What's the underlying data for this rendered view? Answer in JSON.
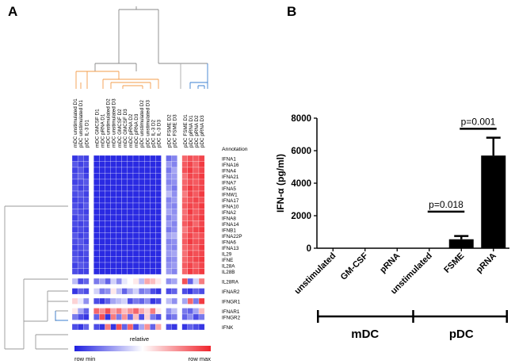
{
  "panel_a": {
    "label": "A",
    "annotation_header": "Annotation",
    "legend": {
      "title": "relative",
      "min_label": "row min",
      "max_label": "row max"
    }
  },
  "panel_b": {
    "label": "B",
    "group_labels": [
      "mDC",
      "pDC"
    ]
  },
  "chart_data": [
    {
      "type": "heatmap",
      "columns": [
        "mDC unstimulated D1",
        "pDC unstimulated D1",
        "pDC IL-3 D1",
        "mDC GMCSF D1",
        "mDC pRNA D1",
        "mDC unstimulated D2",
        "mDC unstimulated D3",
        "mDC GMCSF D2",
        "mDC GMCSF D3",
        "mDC pRNA D2",
        "mDC pRNA D3",
        "pDC unstimulated D2",
        "pDC unstimulated D3",
        "pDC IL-3 D2",
        "pDC IL-3 D3",
        "pDC FSME D2",
        "pDC FSME D3",
        "pDC FSME D1",
        "pDC pRNA D1",
        "pDC pRNA D2",
        "pDC pRNA D3"
      ],
      "column_groups": [
        3,
        12,
        2,
        4
      ],
      "row_groups": [
        {
          "rows": [
            "IFNA1",
            "IFNA16",
            "IFNA4",
            "IFNA21",
            "IFNA7",
            "IFNA5",
            "IFNW1",
            "IFNA17",
            "IFNA10",
            "IFNA2",
            "IFNA8",
            "IFNA14",
            "IFNB1",
            "IFNA22P",
            "IFNA6",
            "IFNA13",
            "IL29",
            "IFNE",
            "IL28A",
            "IL28B"
          ]
        },
        {
          "rows": [
            "IL28RA"
          ]
        },
        {
          "rows": [
            "IFNAR2"
          ]
        },
        {
          "rows": [
            "IFNGR1"
          ]
        },
        {
          "rows": [
            "IFNAR1",
            "IFNGR2"
          ]
        },
        {
          "rows": [
            "IFNK"
          ]
        }
      ],
      "scale": {
        "min": -1,
        "max": 1
      },
      "values": [
        [
          -0.9,
          -0.8,
          -0.85,
          -0.95,
          -0.95,
          -0.95,
          -0.95,
          -0.95,
          -0.95,
          -0.95,
          -0.95,
          -0.95,
          -0.95,
          -0.95,
          -0.95,
          -0.65,
          -0.55,
          0.7,
          0.8,
          0.75,
          0.85
        ],
        [
          -0.75,
          -0.85,
          -0.8,
          -0.95,
          -0.95,
          -0.95,
          -0.95,
          -0.95,
          -0.95,
          -0.95,
          -0.95,
          -0.95,
          -0.95,
          -0.95,
          -0.95,
          -0.45,
          -0.55,
          0.75,
          0.85,
          0.7,
          0.9
        ],
        [
          -0.85,
          -0.75,
          -0.9,
          -0.95,
          -0.95,
          -0.95,
          -0.95,
          -0.95,
          -0.95,
          -0.95,
          -0.95,
          -0.95,
          -0.95,
          -0.95,
          -0.95,
          -0.6,
          -0.4,
          0.8,
          0.9,
          0.75,
          0.85
        ],
        [
          -0.8,
          -0.7,
          -0.85,
          -0.95,
          -0.95,
          -0.95,
          -0.95,
          -0.95,
          -0.95,
          -0.95,
          -0.95,
          -0.95,
          -0.95,
          -0.95,
          -0.95,
          -0.5,
          -0.45,
          0.65,
          0.85,
          0.8,
          0.9
        ],
        [
          -0.85,
          -0.8,
          -0.75,
          -0.95,
          -0.95,
          -0.95,
          -0.95,
          -0.95,
          -0.95,
          -0.95,
          -0.95,
          -0.95,
          -0.95,
          -0.95,
          -0.95,
          -0.55,
          -0.5,
          0.7,
          0.8,
          0.75,
          0.85
        ],
        [
          -0.75,
          -0.85,
          -0.8,
          -0.95,
          -0.95,
          -0.95,
          -0.95,
          -0.95,
          -0.95,
          -0.95,
          -0.95,
          -0.95,
          -0.95,
          -0.95,
          -0.95,
          -0.45,
          -0.6,
          0.75,
          0.9,
          0.8,
          0.85
        ],
        [
          -0.8,
          -0.75,
          -0.85,
          -0.95,
          -0.95,
          -0.95,
          -0.95,
          -0.95,
          -0.95,
          -0.95,
          -0.95,
          -0.95,
          -0.95,
          -0.95,
          -0.95,
          -0.3,
          -0.5,
          0.6,
          0.85,
          0.75,
          0.9
        ],
        [
          -0.85,
          -0.8,
          -0.8,
          -0.95,
          -0.95,
          -0.95,
          -0.95,
          -0.95,
          -0.95,
          -0.95,
          -0.95,
          -0.95,
          -0.95,
          -0.95,
          -0.95,
          -0.55,
          -0.45,
          0.7,
          0.8,
          0.85,
          0.8
        ],
        [
          -0.8,
          -0.85,
          -0.75,
          -0.95,
          -0.95,
          -0.95,
          -0.95,
          -0.95,
          -0.95,
          -0.95,
          -0.95,
          -0.95,
          -0.95,
          -0.95,
          -0.95,
          -0.5,
          -0.55,
          0.75,
          0.85,
          0.8,
          0.9
        ],
        [
          -0.75,
          -0.8,
          -0.85,
          -0.95,
          -0.95,
          -0.95,
          -0.95,
          -0.95,
          -0.95,
          -0.95,
          -0.95,
          -0.95,
          -0.95,
          -0.95,
          -0.95,
          -0.4,
          -0.5,
          0.65,
          0.9,
          0.75,
          0.85
        ],
        [
          -0.85,
          -0.75,
          -0.8,
          -0.95,
          -0.95,
          -0.95,
          -0.95,
          -0.95,
          -0.95,
          -0.95,
          -0.95,
          -0.95,
          -0.95,
          -0.95,
          -0.95,
          -0.55,
          -0.45,
          0.7,
          0.8,
          0.8,
          0.9
        ],
        [
          -0.8,
          -0.85,
          -0.8,
          -0.95,
          -0.95,
          -0.95,
          -0.95,
          -0.95,
          -0.95,
          -0.95,
          -0.95,
          -0.95,
          -0.95,
          -0.95,
          -0.95,
          -0.45,
          -0.55,
          0.75,
          0.85,
          0.7,
          0.85
        ],
        [
          -0.85,
          -0.8,
          -0.85,
          -0.95,
          -0.95,
          -0.95,
          -0.95,
          -0.95,
          -0.95,
          -0.95,
          -0.95,
          -0.95,
          -0.95,
          -0.95,
          -0.95,
          -0.6,
          -0.5,
          0.6,
          0.8,
          0.85,
          0.9
        ],
        [
          -0.75,
          -0.85,
          -0.8,
          -0.95,
          -0.95,
          -0.95,
          -0.95,
          -0.95,
          -0.95,
          -0.95,
          -0.95,
          -0.95,
          -0.95,
          -0.95,
          -0.95,
          -0.4,
          -0.35,
          0.7,
          0.85,
          0.75,
          0.8
        ],
        [
          -0.8,
          -0.75,
          -0.85,
          -0.95,
          -0.95,
          -0.95,
          -0.95,
          -0.95,
          -0.95,
          -0.95,
          -0.95,
          -0.95,
          -0.95,
          -0.95,
          -0.95,
          -0.55,
          -0.5,
          0.75,
          0.9,
          0.8,
          0.85
        ],
        [
          -0.85,
          -0.8,
          -0.75,
          -0.95,
          -0.95,
          -0.95,
          -0.95,
          -0.95,
          -0.95,
          -0.95,
          -0.95,
          -0.95,
          -0.95,
          -0.95,
          -0.95,
          -0.5,
          -0.55,
          0.7,
          0.8,
          0.75,
          0.9
        ],
        [
          -0.8,
          -0.85,
          -0.8,
          -0.95,
          -0.95,
          -0.95,
          -0.95,
          -0.95,
          -0.95,
          -0.95,
          -0.95,
          -0.95,
          -0.95,
          -0.95,
          -0.95,
          -0.45,
          -0.4,
          0.65,
          0.85,
          0.8,
          0.85
        ],
        [
          -0.75,
          -0.8,
          -0.85,
          -0.95,
          -0.95,
          -0.95,
          -0.95,
          -0.95,
          -0.95,
          -0.95,
          -0.95,
          -0.95,
          -0.95,
          -0.95,
          -0.95,
          -0.55,
          -0.5,
          0.7,
          0.8,
          0.85,
          0.9
        ],
        [
          -0.85,
          -0.75,
          -0.8,
          -0.95,
          -0.95,
          -0.95,
          -0.95,
          -0.95,
          -0.95,
          -0.95,
          -0.95,
          -0.95,
          -0.95,
          -0.95,
          -0.95,
          -0.5,
          -0.45,
          0.75,
          0.85,
          0.75,
          0.85
        ],
        [
          -0.8,
          -0.85,
          -0.85,
          -0.95,
          -0.95,
          -0.95,
          -0.95,
          -0.95,
          -0.95,
          -0.95,
          -0.95,
          -0.95,
          -0.95,
          -0.95,
          -0.95,
          -0.45,
          -0.55,
          0.7,
          0.9,
          0.8,
          0.9
        ],
        [
          -0.3,
          -0.8,
          -0.7,
          -0.6,
          -0.4,
          -0.7,
          -0.2,
          -0.5,
          -0.1,
          0.0,
          0.1,
          -0.3,
          0.4,
          0.3,
          0.1,
          -0.5,
          -0.4,
          0.8,
          -0.7,
          -0.2,
          0.6
        ],
        [
          -0.9,
          -0.7,
          -0.8,
          -0.2,
          -0.6,
          -0.5,
          0.1,
          -0.3,
          -0.7,
          -0.4,
          -0.2,
          -0.6,
          -0.5,
          -0.8,
          -0.9,
          -0.8,
          -0.7,
          -0.8,
          -0.9,
          -0.7,
          -0.8
        ],
        [
          0.2,
          -0.1,
          -0.5,
          -0.8,
          -0.9,
          -0.7,
          -0.4,
          -0.3,
          -0.2,
          -0.8,
          -0.6,
          -0.7,
          -0.5,
          -0.9,
          -0.8,
          -0.3,
          -0.5,
          -0.4,
          0.7,
          -0.6,
          0.9
        ],
        [
          0.1,
          -0.4,
          -0.7,
          0.7,
          0.5,
          0.8,
          0.4,
          0.6,
          0.3,
          0.5,
          0.7,
          0.4,
          0.2,
          0.6,
          0.1,
          -0.5,
          -0.3,
          -0.6,
          -0.7,
          -0.4,
          0.3
        ],
        [
          -0.6,
          -0.8,
          -0.9,
          -0.7,
          0.8,
          -0.9,
          0.6,
          -0.6,
          0.5,
          -0.7,
          0.3,
          -0.8,
          0.2,
          -0.6,
          -0.8,
          -0.7,
          -0.6,
          -0.7,
          -0.5,
          -0.8,
          -0.6
        ],
        [
          -0.8,
          -0.9,
          -0.7,
          -0.8,
          -0.9,
          0.6,
          -0.9,
          0.8,
          -0.7,
          0.7,
          -0.8,
          -0.4,
          0.5,
          -0.7,
          0.4,
          -0.8,
          -0.9,
          -0.9,
          -0.7,
          -0.8,
          -0.9
        ]
      ]
    },
    {
      "type": "bar",
      "categories": [
        "unstimulated",
        "GM-CSF",
        "pRNA",
        "unstimulated",
        "FSME",
        "pRNA"
      ],
      "values": [
        0,
        0,
        0,
        0,
        550,
        5700
      ],
      "error": [
        0,
        0,
        0,
        0,
        200,
        1100
      ],
      "ylabel": "IFN-α (pg/ml)",
      "ylim": [
        0,
        8000
      ],
      "yticks": [
        0,
        2000,
        4000,
        6000,
        8000
      ],
      "bar_color": "#000000",
      "groups": [
        {
          "name": "mDC",
          "from": 0,
          "to": 2
        },
        {
          "name": "pDC",
          "from": 3,
          "to": 5
        }
      ],
      "annotations": [
        {
          "text": "p=0.018",
          "from": 3,
          "to": 4
        },
        {
          "text": "p=0.001",
          "from": 4,
          "to": 5
        }
      ]
    }
  ]
}
